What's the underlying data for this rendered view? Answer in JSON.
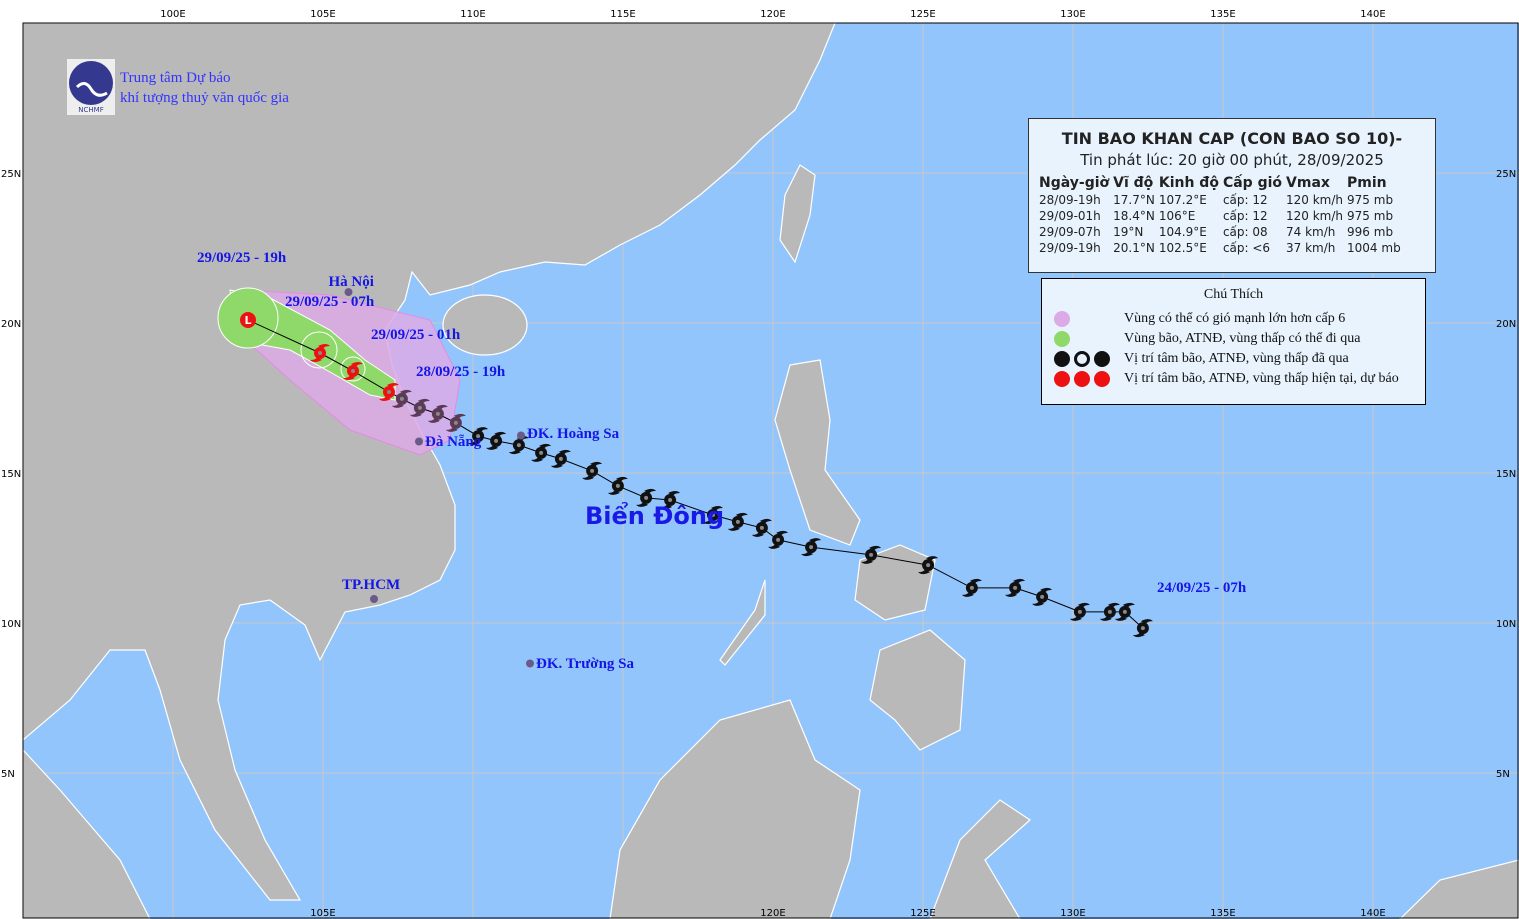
{
  "map": {
    "colors": {
      "sea": "#93c5fd",
      "land": "#b9b9b9",
      "wind_zone": "#dcaae6",
      "storm_zone": "#8fd96a",
      "past_symbol": "#111111",
      "current_symbol": "#ee1111",
      "label": "#1515e6"
    },
    "lon_ticks": [
      "100E",
      "105E",
      "110E",
      "115E",
      "120E",
      "125E",
      "130E",
      "135E",
      "140E"
    ],
    "lon_ticks_bottom": [
      "105E",
      "120E",
      "125E",
      "130E",
      "135E",
      "140E"
    ],
    "lat_ticks": [
      "25N",
      "20N",
      "15N",
      "10N",
      "5N"
    ],
    "sea_label": "Biển Đông",
    "places": [
      {
        "name": "Hà Nội",
        "lon": 105.85,
        "lat": 21.03
      },
      {
        "name": "Đà Nẵng",
        "lon": 108.2,
        "lat": 16.05
      },
      {
        "name": "ĐK. Hoàng Sa",
        "lon": 111.6,
        "lat": 16.25
      },
      {
        "name": "TP.HCM",
        "lon": 106.7,
        "lat": 10.8
      },
      {
        "name": "ĐK. Trường Sa",
        "lon": 111.9,
        "lat": 8.65
      }
    ],
    "time_labels": [
      "29/09/25 - 19h",
      "29/09/25 - 07h",
      "29/09/25 - 01h",
      "28/09/25 - 19h",
      "24/09/25 - 07h"
    ],
    "past_track": [
      [
        132.33,
        9.83
      ],
      [
        131.73,
        10.37
      ],
      [
        131.23,
        10.37
      ],
      [
        130.23,
        10.37
      ],
      [
        128.97,
        10.87
      ],
      [
        128.07,
        11.17
      ],
      [
        126.63,
        11.17
      ],
      [
        125.17,
        11.93
      ],
      [
        123.27,
        12.27
      ],
      [
        121.27,
        12.53
      ],
      [
        120.17,
        12.77
      ],
      [
        119.63,
        13.17
      ],
      [
        118.83,
        13.37
      ],
      [
        118.0,
        13.6
      ],
      [
        116.57,
        14.1
      ],
      [
        115.77,
        14.17
      ],
      [
        114.83,
        14.57
      ],
      [
        113.97,
        15.07
      ],
      [
        112.93,
        15.47
      ],
      [
        112.27,
        15.67
      ],
      [
        111.53,
        15.93
      ],
      [
        110.77,
        16.07
      ],
      [
        110.17,
        16.23
      ],
      [
        109.43,
        16.67
      ],
      [
        108.83,
        16.97
      ],
      [
        108.23,
        17.17
      ],
      [
        107.63,
        17.47
      ]
    ]
  },
  "org": {
    "line1": "Trung tâm Dự báo",
    "line2": "khí tượng thuỷ văn quốc gia",
    "logo_text": "NCHMF"
  },
  "bulletin": {
    "title": "TIN BAO KHAN CAP (CON BAO SO 10)-",
    "issued": "Tin phát lúc: 20 giờ 00 phút, 28/09/2025",
    "headers": [
      "Ngày-giờ",
      "Vĩ độ",
      "Kinh độ",
      "Cấp gió",
      "Vmax",
      "Pmin"
    ],
    "rows": [
      {
        "time": "28/09-19h",
        "lat": "17.7°N",
        "lon": "107.2°E",
        "wind": "cấp: 12",
        "vmax": "120 km/h",
        "pmin": "975 mb",
        "type": "storm",
        "lat_v": 17.7,
        "lon_v": 107.2
      },
      {
        "time": "29/09-01h",
        "lat": "18.4°N",
        "lon": "106°E",
        "wind": "cấp: 12",
        "vmax": "120 km/h",
        "pmin": "975 mb",
        "type": "storm",
        "lat_v": 18.4,
        "lon_v": 106.0
      },
      {
        "time": "29/09-07h",
        "lat": "19°N",
        "lon": "104.9°E",
        "wind": "cấp: 08",
        "vmax": "74 km/h",
        "pmin": "996 mb",
        "type": "storm",
        "lat_v": 19.0,
        "lon_v": 104.9
      },
      {
        "time": "29/09-19h",
        "lat": "20.1°N",
        "lon": "102.5°E",
        "wind": "cấp: <6",
        "vmax": "37 km/h",
        "pmin": "1004 mb",
        "type": "low",
        "lat_v": 20.1,
        "lon_v": 102.5
      }
    ]
  },
  "legend": {
    "title": "Chú Thích",
    "items": [
      "Vùng có thể có gió mạnh lớn hơn cấp 6",
      "Vùng bão, ATNĐ, vùng thấp có thể đi qua",
      "Vị trí tâm bão, ATNĐ, vùng thấp đã qua",
      "Vị trí tâm bão, ATNĐ, vùng thấp hiện tại, dự báo"
    ]
  }
}
